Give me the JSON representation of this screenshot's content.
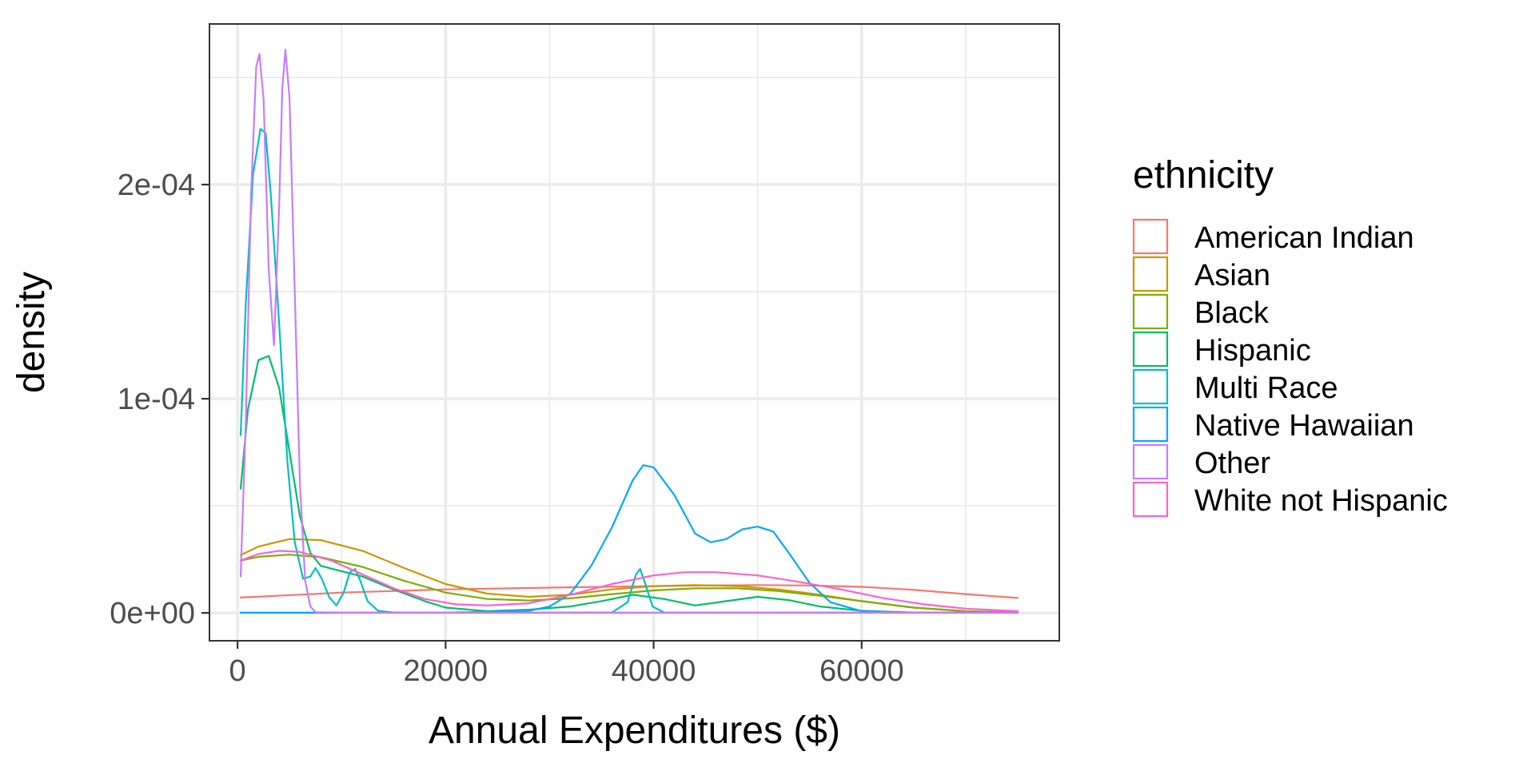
{
  "chart_data": {
    "type": "line",
    "xlabel": "Annual Expenditures ($)",
    "ylabel": "density",
    "xlim": [
      -2700,
      79000
    ],
    "ylim": [
      -1.3e-05,
      0.000275
    ],
    "x_ticks": [
      0,
      20000,
      40000,
      60000
    ],
    "x_tick_labels": [
      "0",
      "20000",
      "40000",
      "60000"
    ],
    "y_ticks": [
      0,
      0.0001,
      0.0002
    ],
    "y_tick_labels": [
      "0e+00",
      "1e-04",
      "2e-04"
    ],
    "x_minor_ticks": [
      10000,
      30000,
      50000,
      70000
    ],
    "y_minor_ticks": [
      5e-05,
      0.00015,
      0.00025
    ],
    "grid": true,
    "legend": {
      "title": "ethnicity",
      "position": "right"
    },
    "series": [
      {
        "name": "American Indian",
        "color": "#F8766D",
        "x": [
          300,
          10000,
          20000,
          30000,
          40000,
          45000,
          50000,
          55000,
          60000,
          65000,
          70000,
          75000
        ],
        "y": [
          7.2e-06,
          9.5e-06,
          1.1e-05,
          1.18e-05,
          1.25e-05,
          1.28e-05,
          1.3e-05,
          1.28e-05,
          1.22e-05,
          1.08e-05,
          8.8e-06,
          7e-06
        ]
      },
      {
        "name": "Asian",
        "color": "#CD9600",
        "x": [
          300,
          2000,
          5000,
          8000,
          12000,
          16000,
          20000,
          24000,
          28000,
          32000,
          36000,
          40000,
          44000,
          48000,
          52000,
          56000,
          60000,
          65000,
          70000,
          75000
        ],
        "y": [
          2.7e-05,
          3.1e-05,
          3.45e-05,
          3.4e-05,
          2.9e-05,
          2.1e-05,
          1.35e-05,
          9e-06,
          7.5e-06,
          8.5e-06,
          1.1e-05,
          1.25e-05,
          1.3e-05,
          1.25e-05,
          1.1e-05,
          8.5e-06,
          5.5e-06,
          2.5e-06,
          8e-07,
          2e-07
        ]
      },
      {
        "name": "Black",
        "color": "#7CAE00",
        "x": [
          300,
          2000,
          5000,
          8000,
          12000,
          16000,
          20000,
          24000,
          28000,
          32000,
          36000,
          40000,
          44000,
          48000,
          52000,
          56000,
          60000,
          65000,
          70000,
          75000
        ],
        "y": [
          2.45e-05,
          2.62e-05,
          2.72e-05,
          2.6e-05,
          2.15e-05,
          1.5e-05,
          9.5e-06,
          6.5e-06,
          5.8e-06,
          6.8e-06,
          8.8e-06,
          1.05e-05,
          1.15e-05,
          1.15e-05,
          1.02e-05,
          8e-06,
          5.5e-06,
          2.5e-06,
          8e-07,
          2e-07
        ]
      },
      {
        "name": "Hispanic",
        "color": "#00BE67",
        "x": [
          300,
          1000,
          2000,
          3000,
          4000,
          5000,
          6000,
          7000,
          8000,
          10000,
          12000,
          15000,
          18000,
          20000,
          24000,
          28000,
          32000,
          35000,
          38000,
          41000,
          44000,
          47000,
          50000,
          53000,
          56000,
          60000,
          65000,
          70000,
          75000
        ],
        "y": [
          5.8e-05,
          9.5e-05,
          0.000118,
          0.00012,
          0.000105,
          7.5e-05,
          4.5e-05,
          2.8e-05,
          2.2e-05,
          1.95e-05,
          1.7e-05,
          1.1e-05,
          5.5e-06,
          2.5e-06,
          8e-07,
          1.5e-06,
          3e-06,
          5.5e-06,
          8.5e-06,
          6.5e-06,
          3.5e-06,
          5.5e-06,
          7.5e-06,
          6e-06,
          3e-06,
          1e-06,
          2e-07,
          1e-07,
          1e-07
        ]
      },
      {
        "name": "Multi Race",
        "color": "#00BFC4",
        "x": [
          300,
          800,
          1500,
          2200,
          2700,
          3200,
          4000,
          4800,
          5500,
          6300,
          7000,
          7500,
          8100,
          8800,
          9500,
          10200,
          10800,
          11300,
          11800,
          12500,
          13500,
          15000,
          17000,
          20000,
          30000,
          36000,
          37500,
          38300,
          38700,
          39100,
          39900,
          41000,
          50000,
          60000,
          75000
        ],
        "y": [
          8.3e-05,
          0.000145,
          0.000205,
          0.000226,
          0.000224,
          0.000195,
          0.000135,
          7e-05,
          3.3e-05,
          1.6e-05,
          1.7e-05,
          2.1e-05,
          1.6e-05,
          7.5e-06,
          3.5e-06,
          9.5e-06,
          1.9e-05,
          2.05e-05,
          1.5e-05,
          5.5e-06,
          1e-06,
          2e-07,
          1e-07,
          1e-07,
          1e-07,
          2e-07,
          5e-06,
          1.8e-05,
          2.05e-05,
          1.5e-05,
          3e-06,
          2e-07,
          1e-07,
          1e-07,
          1e-07
        ]
      },
      {
        "name": "Native Hawaiian",
        "color": "#00A9FF",
        "x": [
          300,
          20000,
          28000,
          30000,
          32000,
          34000,
          36000,
          38000,
          39000,
          40000,
          42000,
          44000,
          45500,
          47000,
          48500,
          50000,
          51500,
          53000,
          55000,
          57000,
          60000,
          65000,
          75000
        ],
        "y": [
          1e-07,
          1e-07,
          1e-06,
          3e-06,
          9e-06,
          2.2e-05,
          4e-05,
          6.2e-05,
          6.9e-05,
          6.8e-05,
          5.5e-05,
          3.7e-05,
          3.3e-05,
          3.45e-05,
          3.9e-05,
          4.03e-05,
          3.8e-05,
          2.8e-05,
          1.4e-05,
          5e-06,
          8e-07,
          1e-07,
          1e-07
        ]
      },
      {
        "name": "Other",
        "color": "#C77CFF",
        "x": [
          300,
          800,
          1300,
          1800,
          2100,
          2500,
          3000,
          3500,
          4000,
          4300,
          4600,
          5000,
          5500,
          6000,
          6500,
          7000,
          7500,
          10000,
          20000,
          40000,
          75000
        ],
        "y": [
          1.7e-05,
          9e-05,
          0.000195,
          0.000255,
          0.000261,
          0.00024,
          0.00016,
          0.000125,
          0.00019,
          0.000245,
          0.000263,
          0.00024,
          0.00015,
          6e-05,
          1.5e-05,
          3e-06,
          3e-07,
          1e-07,
          1e-07,
          1e-07,
          1e-07
        ]
      },
      {
        "name": "White not Hispanic",
        "color": "#FF61CC",
        "x": [
          300,
          2000,
          4000,
          6000,
          9000,
          12000,
          15000,
          18000,
          21000,
          24000,
          28000,
          32000,
          36000,
          40000,
          43000,
          46000,
          50000,
          54000,
          58000,
          62000,
          66000,
          70000,
          75000
        ],
        "y": [
          2.45e-05,
          2.75e-05,
          2.9e-05,
          2.85e-05,
          2.45e-05,
          1.8e-05,
          1.15e-05,
          6.5e-06,
          4e-06,
          3.5e-06,
          4.5e-06,
          8.5e-06,
          1.35e-05,
          1.75e-05,
          1.9e-05,
          1.9e-05,
          1.75e-05,
          1.45e-05,
          1.1e-05,
          7e-06,
          4e-06,
          2e-06,
          8e-07
        ]
      }
    ]
  }
}
